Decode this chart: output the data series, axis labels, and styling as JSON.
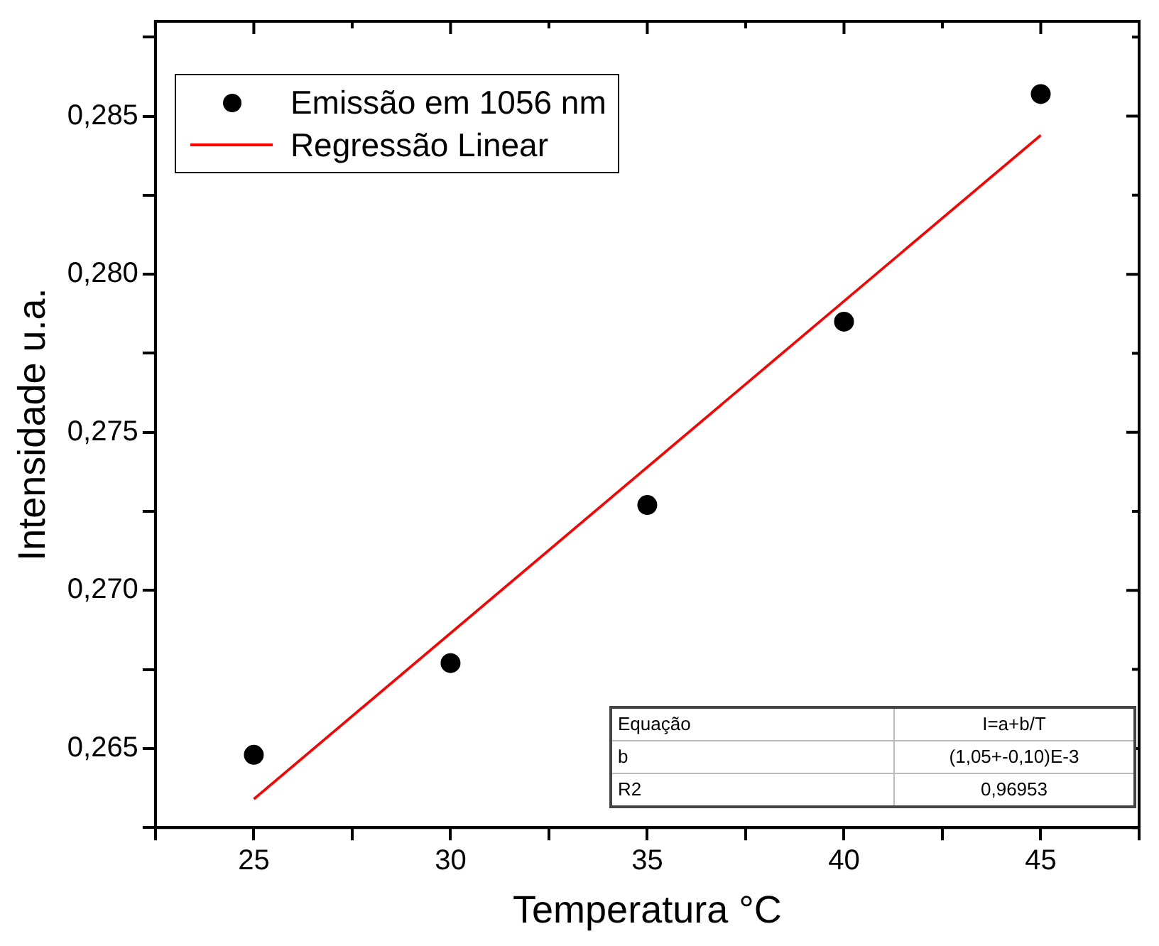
{
  "chart_data": {
    "type": "scatter",
    "xlabel": "Temperatura °C",
    "ylabel": "Intensidade u.a.",
    "xlim": [
      22.5,
      47.5
    ],
    "xticks": [
      {
        "value": 22.5,
        "label": null
      },
      25,
      {
        "value": 27.5,
        "label": null
      },
      30,
      {
        "value": 32.5,
        "label": null
      },
      35,
      {
        "value": 37.5,
        "label": null
      },
      40,
      {
        "value": 42.5,
        "label": null
      },
      45,
      {
        "value": 47.5,
        "label": null
      }
    ],
    "ylim": [
      0.2625,
      0.288
    ],
    "yticks": [
      {
        "value": 0.2625,
        "label": null
      },
      {
        "value": 0.265,
        "label": "0,265"
      },
      {
        "value": 0.2675,
        "label": null
      },
      {
        "value": 0.27,
        "label": "0,270"
      },
      {
        "value": 0.2725,
        "label": null
      },
      {
        "value": 0.275,
        "label": "0,275"
      },
      {
        "value": 0.2775,
        "label": null
      },
      {
        "value": 0.28,
        "label": "0,280"
      },
      {
        "value": 0.2825,
        "label": null
      },
      {
        "value": 0.285,
        "label": "0,285"
      },
      {
        "value": 0.2875,
        "label": null
      }
    ],
    "series": [
      {
        "name": "Emissão em 1056 nm",
        "color": "#000000",
        "marker": "circle",
        "x": [
          25,
          30,
          35,
          40,
          45
        ],
        "values": [
          0.2648,
          0.2677,
          0.2727,
          0.2785,
          0.2857
        ]
      },
      {
        "name": "Regressão Linear",
        "type": "line",
        "color": "#ff0000",
        "marker": "none",
        "x": [
          25,
          45
        ],
        "values": [
          0.2634,
          0.2844
        ]
      }
    ],
    "legend": "top left",
    "grid": false,
    "annotations": [
      "Equação",
      "I=a+b/T",
      "b",
      "(1,05+-0,10)E-3",
      "R2",
      "0,96953"
    ]
  }
}
